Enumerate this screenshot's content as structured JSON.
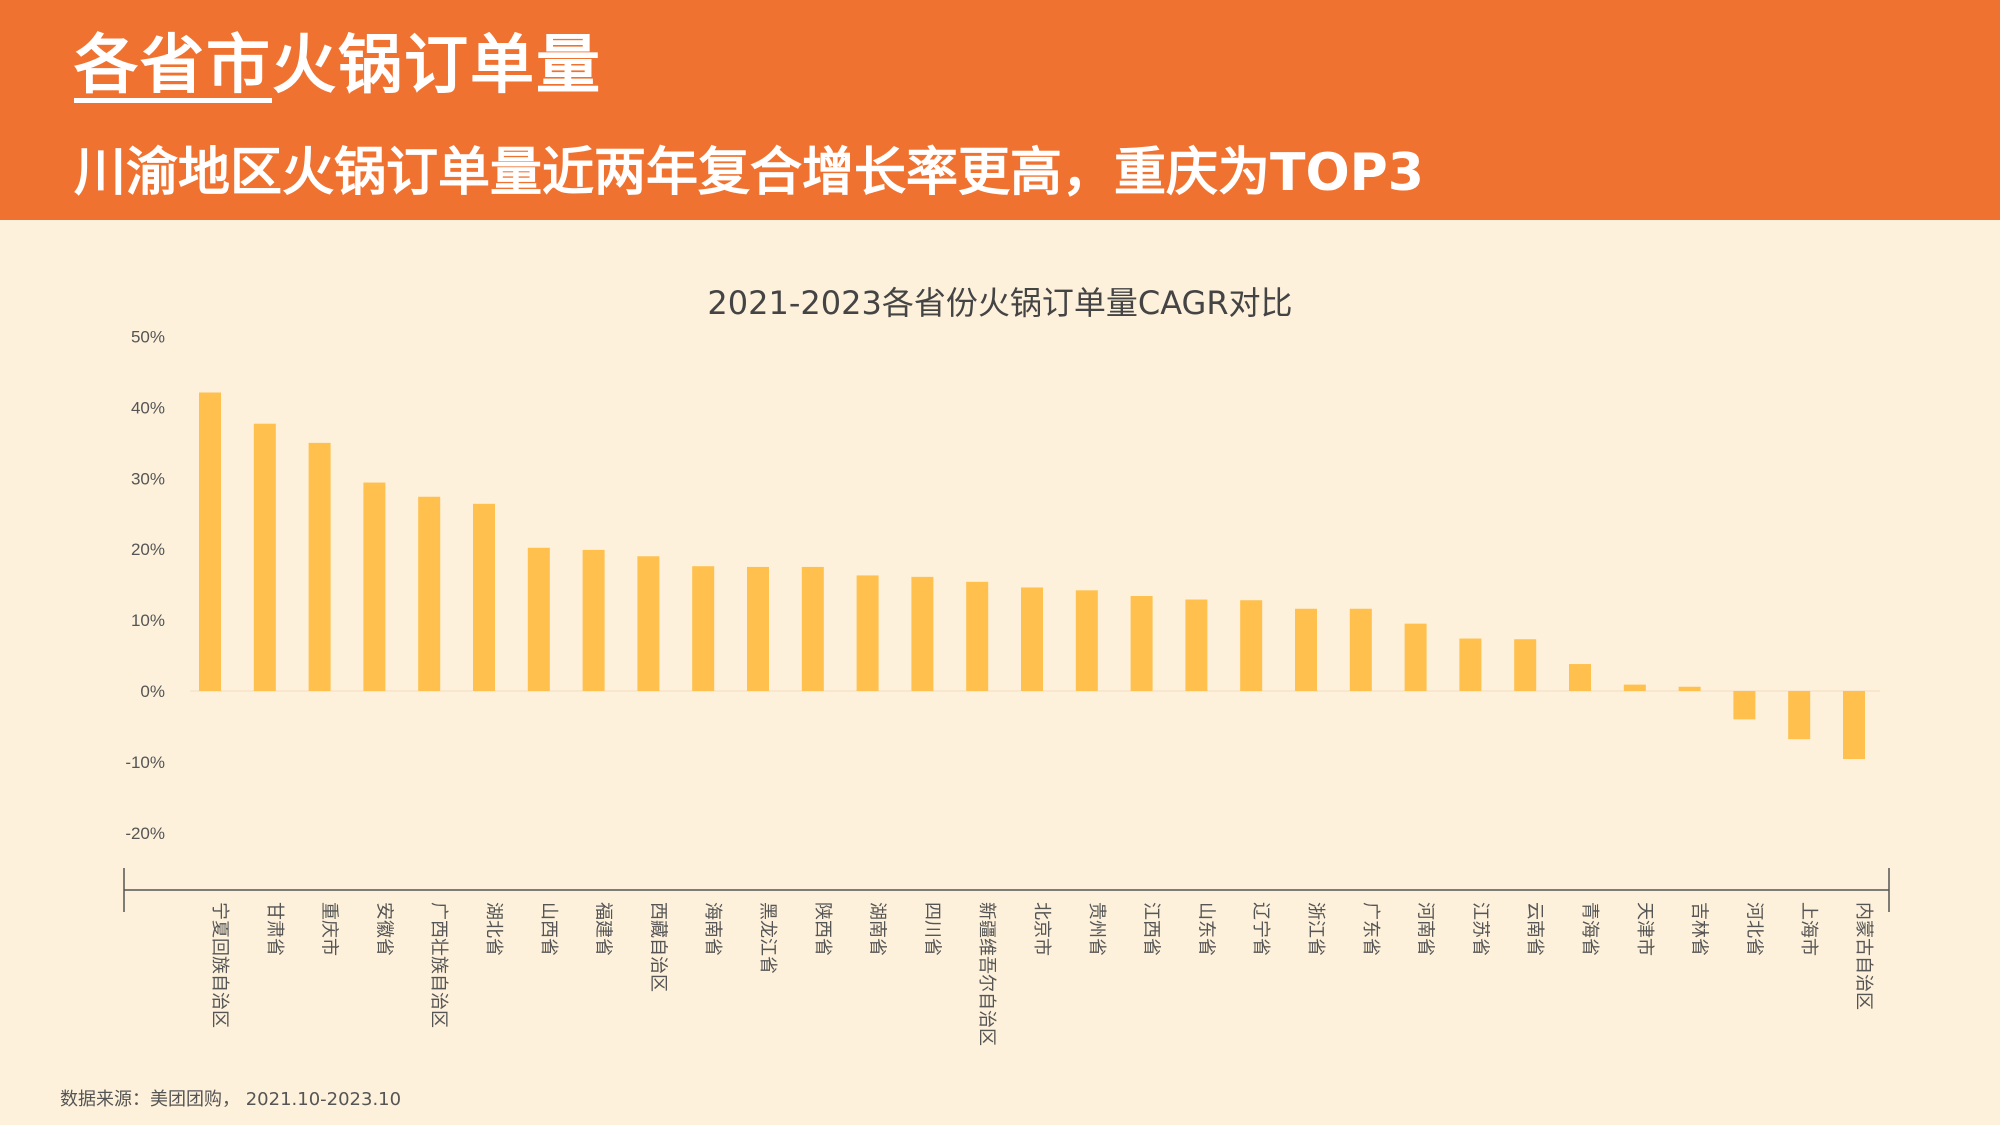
{
  "header": {
    "title": "各省市火锅订单量",
    "subtitle": "川渝地区火锅订单量近两年复合增长率更高，重庆为TOP3"
  },
  "colors": {
    "header_bg": "#f07230",
    "page_bg": "#fdf1dc",
    "bar": "#ffc04d"
  },
  "chart_data": {
    "type": "bar",
    "title": "2021-2023各省份火锅订单量CAGR对比",
    "xlabel": "",
    "ylabel": "",
    "ylim": [
      -20,
      50
    ],
    "yticks": [
      "50%",
      "40%",
      "30%",
      "20%",
      "10%",
      "0%",
      "-10%",
      "-20%"
    ],
    "grid": false,
    "categories": [
      "宁夏回族自治区",
      "甘肃省",
      "重庆市",
      "安徽省",
      "广西壮族自治区",
      "湖北省",
      "山西省",
      "福建省",
      "西藏自治区",
      "海南省",
      "黑龙江省",
      "陕西省",
      "湖南省",
      "四川省",
      "新疆维吾尔自治区",
      "北京市",
      "贵州省",
      "江西省",
      "山东省",
      "辽宁省",
      "浙江省",
      "广东省",
      "河南省",
      "江苏省",
      "云南省",
      "青海省",
      "天津市",
      "吉林省",
      "河北省",
      "上海市",
      "内蒙古自治区"
    ],
    "values": [
      42.1,
      37.7,
      35.0,
      29.4,
      27.4,
      26.4,
      20.2,
      19.9,
      19.0,
      17.6,
      17.5,
      17.5,
      16.3,
      16.1,
      15.4,
      14.6,
      14.2,
      13.4,
      12.9,
      12.8,
      11.6,
      11.6,
      9.5,
      7.4,
      7.3,
      3.8,
      0.9,
      0.6,
      -4.0,
      -6.8,
      -9.6
    ]
  },
  "footer": {
    "source": "数据来源：美团团购， 2021.10-2023.10"
  }
}
